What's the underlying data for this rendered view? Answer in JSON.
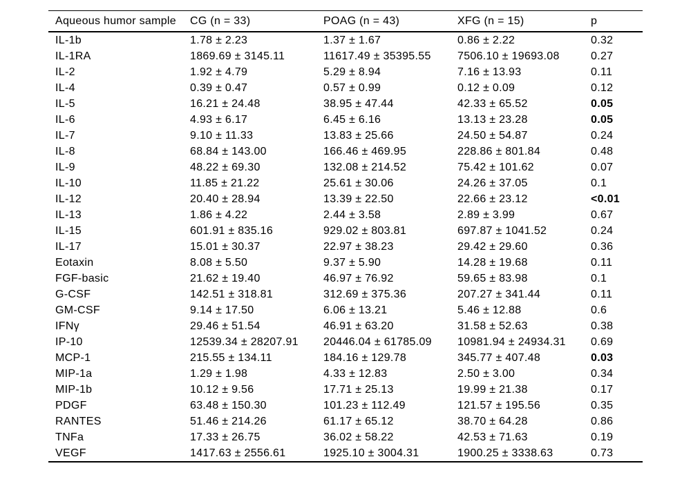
{
  "table": {
    "columns": [
      "Aqueous humor sample",
      "CG (n = 33)",
      "POAG (n = 43)",
      "XFG (n = 15)",
      "p"
    ],
    "rows": [
      {
        "label": "IL-1b",
        "cg": "1.78 ± 2.23",
        "poag": "1.37 ± 1.67",
        "xfg": "0.86 ± 2.22",
        "p": "0.32",
        "p_bold": false
      },
      {
        "label": "IL-1RA",
        "cg": "1869.69 ± 3145.11",
        "poag": "11617.49 ± 35395.55",
        "xfg": "7506.10 ± 19693.08",
        "p": "0.27",
        "p_bold": false
      },
      {
        "label": "IL-2",
        "cg": "1.92 ± 4.79",
        "poag": "5.29 ± 8.94",
        "xfg": "7.16 ± 13.93",
        "p": "0.11",
        "p_bold": false
      },
      {
        "label": "IL-4",
        "cg": "0.39 ± 0.47",
        "poag": "0.57 ± 0.99",
        "xfg": "0.12 ± 0.09",
        "p": "0.12",
        "p_bold": false
      },
      {
        "label": "IL-5",
        "cg": "16.21 ± 24.48",
        "poag": "38.95 ± 47.44",
        "xfg": "42.33 ± 65.52",
        "p": "0.05",
        "p_bold": true
      },
      {
        "label": "IL-6",
        "cg": "4.93 ± 6.17",
        "poag": "6.45 ± 6.16",
        "xfg": "13.13 ± 23.28",
        "p": "0.05",
        "p_bold": true
      },
      {
        "label": "IL-7",
        "cg": "9.10 ± 11.33",
        "poag": "13.83 ± 25.66",
        "xfg": "24.50 ± 54.87",
        "p": "0.24",
        "p_bold": false
      },
      {
        "label": "IL-8",
        "cg": "68.84 ± 143.00",
        "poag": "166.46 ± 469.95",
        "xfg": "228.86 ± 801.84",
        "p": "0.48",
        "p_bold": false
      },
      {
        "label": "IL-9",
        "cg": "48.22 ± 69.30",
        "poag": "132.08 ± 214.52",
        "xfg": "75.42 ± 101.62",
        "p": "0.07",
        "p_bold": false
      },
      {
        "label": "IL-10",
        "cg": "11.85 ± 21.22",
        "poag": "25.61 ± 30.06",
        "xfg": "24.26 ± 37.05",
        "p": "0.1",
        "p_bold": false
      },
      {
        "label": "IL-12",
        "cg": "20.40 ± 28.94",
        "poag": "13.39 ± 22.50",
        "xfg": "22.66 ± 23.12",
        "p": "<0.01",
        "p_bold": true
      },
      {
        "label": "IL-13",
        "cg": "1.86 ± 4.22",
        "poag": "2.44 ± 3.58",
        "xfg": "2.89 ± 3.99",
        "p": "0.67",
        "p_bold": false
      },
      {
        "label": "IL-15",
        "cg": "601.91 ± 835.16",
        "poag": "929.02 ± 803.81",
        "xfg": "697.87 ± 1041.52",
        "p": "0.24",
        "p_bold": false
      },
      {
        "label": "IL-17",
        "cg": "15.01 ± 30.37",
        "poag": "22.97 ± 38.23",
        "xfg": "29.42 ± 29.60",
        "p": "0.36",
        "p_bold": false
      },
      {
        "label": "Eotaxin",
        "cg": "8.08 ± 5.50",
        "poag": "9.37 ± 5.90",
        "xfg": "14.28 ± 19.68",
        "p": "0.11",
        "p_bold": false
      },
      {
        "label": "FGF-basic",
        "cg": "21.62 ± 19.40",
        "poag": "46.97 ± 76.92",
        "xfg": "59.65 ± 83.98",
        "p": "0.1",
        "p_bold": false
      },
      {
        "label": "G-CSF",
        "cg": "142.51 ± 318.81",
        "poag": "312.69 ± 375.36",
        "xfg": "207.27 ± 341.44",
        "p": "0.11",
        "p_bold": false
      },
      {
        "label": "GM-CSF",
        "cg": "9.14 ± 17.50",
        "poag": "6.06 ± 13.21",
        "xfg": "5.46 ± 12.88",
        "p": "0.6",
        "p_bold": false
      },
      {
        "label": "IFNγ",
        "cg": "29.46 ± 51.54",
        "poag": "46.91 ± 63.20",
        "xfg": "31.58 ± 52.63",
        "p": "0.38",
        "p_bold": false
      },
      {
        "label": "IP-10",
        "cg": "12539.34 ± 28207.91",
        "poag": "20446.04 ± 61785.09",
        "xfg": "10981.94 ± 24934.31",
        "p": "0.69",
        "p_bold": false
      },
      {
        "label": "MCP-1",
        "cg": "215.55 ± 134.11",
        "poag": "184.16 ± 129.78",
        "xfg": "345.77 ± 407.48",
        "p": "0.03",
        "p_bold": true
      },
      {
        "label": "MIP-1a",
        "cg": "1.29 ± 1.98",
        "poag": "4.33 ± 12.83",
        "xfg": "2.50 ± 3.00",
        "p": "0.34",
        "p_bold": false
      },
      {
        "label": "MIP-1b",
        "cg": "10.12 ± 9.56",
        "poag": "17.71 ± 25.13",
        "xfg": "19.99 ± 21.38",
        "p": "0.17",
        "p_bold": false
      },
      {
        "label": "PDGF",
        "cg": "63.48 ± 150.30",
        "poag": "101.23 ± 112.49",
        "xfg": "121.57 ± 195.56",
        "p": "0.35",
        "p_bold": false
      },
      {
        "label": "RANTES",
        "cg": "51.46 ± 214.26",
        "poag": "61.17 ± 65.12",
        "xfg": "38.70 ± 64.28",
        "p": "0.86",
        "p_bold": false
      },
      {
        "label": "TNFa",
        "cg": "17.33 ± 26.75",
        "poag": "36.02 ± 58.22",
        "xfg": "42.53 ± 71.63",
        "p": "0.19",
        "p_bold": false
      },
      {
        "label": "VEGF",
        "cg": "1417.63 ± 2556.61",
        "poag": "1925.10 ± 3004.31",
        "xfg": "1900.25 ± 3338.63",
        "p": "0.73",
        "p_bold": false
      }
    ]
  }
}
